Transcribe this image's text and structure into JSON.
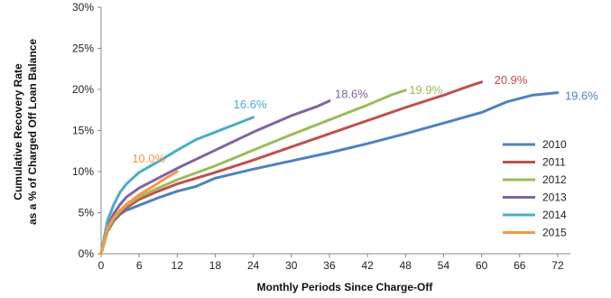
{
  "chart_data": {
    "type": "line",
    "title": "",
    "xlabel": "Monthly Periods Since Charge-Off",
    "ylabel_line1": "Cumulative Recovery Rate",
    "ylabel_line2": "as a % of Charged Off Loan Balance",
    "xlim": [
      0,
      74
    ],
    "ylim": [
      0,
      30
    ],
    "x_ticks": [
      0,
      6,
      12,
      18,
      24,
      30,
      36,
      42,
      48,
      54,
      60,
      66,
      72
    ],
    "y_ticks": [
      0,
      5,
      10,
      15,
      20,
      25,
      30
    ],
    "y_tick_labels": [
      "0%",
      "5%",
      "10%",
      "15%",
      "20%",
      "25%",
      "30%"
    ],
    "grid": false,
    "legend_position": "lower-right",
    "series": [
      {
        "name": "2010",
        "color": "#4f81bd",
        "end_label": "19.6%",
        "points": [
          [
            0,
            0
          ],
          [
            1,
            2.7
          ],
          [
            2,
            4.0
          ],
          [
            3,
            4.8
          ],
          [
            4,
            5.3
          ],
          [
            6,
            5.9
          ],
          [
            9,
            6.8
          ],
          [
            12,
            7.6
          ],
          [
            15,
            8.2
          ],
          [
            18,
            9.2
          ],
          [
            24,
            10.3
          ],
          [
            30,
            11.3
          ],
          [
            36,
            12.3
          ],
          [
            42,
            13.4
          ],
          [
            48,
            14.6
          ],
          [
            54,
            15.9
          ],
          [
            60,
            17.2
          ],
          [
            64,
            18.5
          ],
          [
            68,
            19.3
          ],
          [
            72,
            19.6
          ]
        ]
      },
      {
        "name": "2011",
        "color": "#c0504d",
        "end_label": "20.9%",
        "points": [
          [
            0,
            0
          ],
          [
            1,
            2.8
          ],
          [
            2,
            4.1
          ],
          [
            3,
            5.0
          ],
          [
            4,
            5.6
          ],
          [
            6,
            6.6
          ],
          [
            9,
            7.6
          ],
          [
            12,
            8.5
          ],
          [
            18,
            9.9
          ],
          [
            24,
            11.4
          ],
          [
            30,
            13.0
          ],
          [
            36,
            14.6
          ],
          [
            42,
            16.2
          ],
          [
            48,
            17.8
          ],
          [
            54,
            19.3
          ],
          [
            58,
            20.4
          ],
          [
            60,
            20.9
          ]
        ]
      },
      {
        "name": "2012",
        "color": "#9bbb59",
        "end_label": "19.9%",
        "points": [
          [
            0,
            0
          ],
          [
            1,
            2.9
          ],
          [
            2,
            4.3
          ],
          [
            3,
            5.2
          ],
          [
            4,
            5.9
          ],
          [
            6,
            6.9
          ],
          [
            9,
            8.0
          ],
          [
            12,
            9.0
          ],
          [
            18,
            10.7
          ],
          [
            24,
            12.6
          ],
          [
            30,
            14.5
          ],
          [
            36,
            16.3
          ],
          [
            42,
            18.1
          ],
          [
            46,
            19.4
          ],
          [
            48,
            19.9
          ]
        ]
      },
      {
        "name": "2013",
        "color": "#8064a2",
        "end_label": "18.6%",
        "points": [
          [
            0,
            0
          ],
          [
            1,
            3.3
          ],
          [
            2,
            4.9
          ],
          [
            3,
            6.0
          ],
          [
            4,
            6.9
          ],
          [
            6,
            8.0
          ],
          [
            9,
            9.2
          ],
          [
            12,
            10.4
          ],
          [
            18,
            12.6
          ],
          [
            24,
            14.8
          ],
          [
            30,
            16.8
          ],
          [
            34,
            17.9
          ],
          [
            36,
            18.6
          ]
        ]
      },
      {
        "name": "2014",
        "color": "#4bacc6",
        "end_label": "16.6%",
        "points": [
          [
            0,
            0
          ],
          [
            1,
            4.0
          ],
          [
            2,
            6.0
          ],
          [
            3,
            7.5
          ],
          [
            4,
            8.5
          ],
          [
            6,
            9.9
          ],
          [
            9,
            11.2
          ],
          [
            12,
            12.6
          ],
          [
            15,
            13.9
          ],
          [
            18,
            14.8
          ],
          [
            21,
            15.7
          ],
          [
            24,
            16.6
          ]
        ]
      },
      {
        "name": "2015",
        "color": "#f79646",
        "end_label": "10.0%",
        "points": [
          [
            0,
            0
          ],
          [
            1,
            3.1
          ],
          [
            2,
            4.4
          ],
          [
            3,
            5.3
          ],
          [
            4,
            6.0
          ],
          [
            6,
            7.2
          ],
          [
            8,
            8.1
          ],
          [
            10,
            9.1
          ],
          [
            12,
            10.0
          ]
        ]
      }
    ]
  }
}
